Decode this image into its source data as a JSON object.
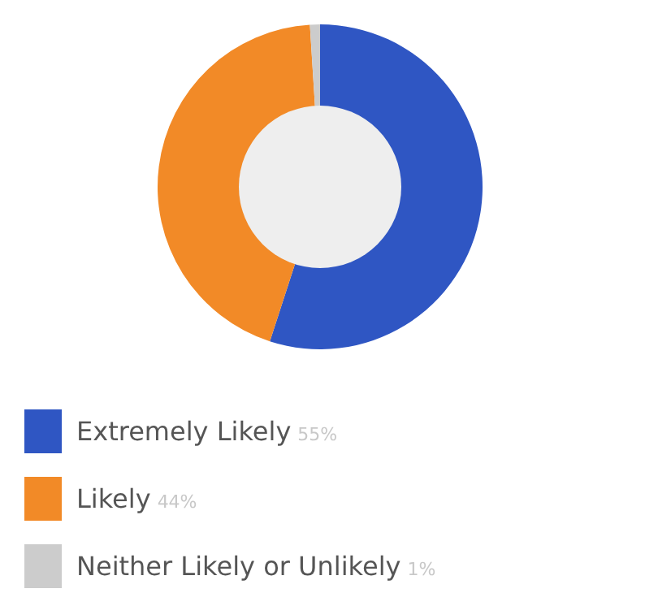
{
  "chart_data": {
    "type": "donut",
    "categories": [
      "Extremely Likely",
      "Likely",
      "Neither Likely or Unlikely"
    ],
    "values": [
      55,
      44,
      1
    ],
    "colors": [
      "#2f56c3",
      "#f28a27",
      "#cccccc"
    ],
    "value_labels": [
      "55%",
      "44%",
      "1%"
    ],
    "legend": "bottom"
  }
}
